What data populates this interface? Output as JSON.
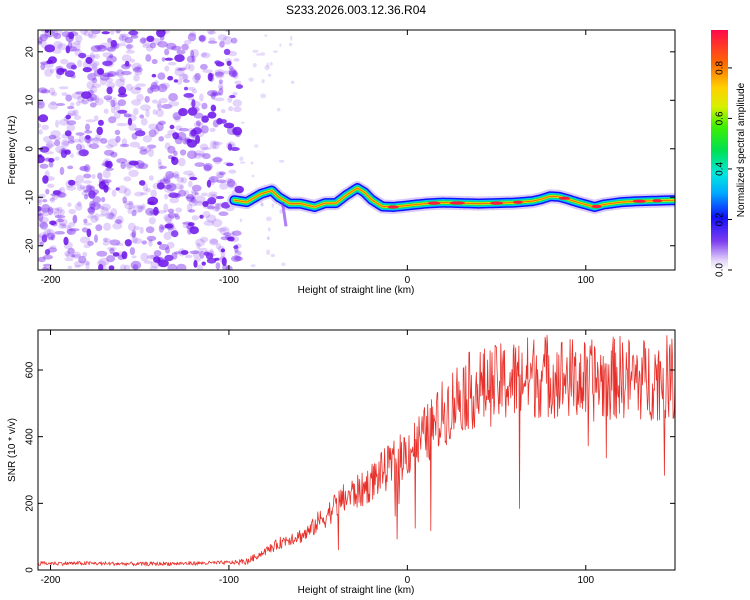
{
  "title": "S233.2026.003.12.36.R04",
  "chart_data": [
    {
      "type": "heatmap",
      "name": "spectrogram",
      "xlabel": "Height of straight line (km)",
      "ylabel": "Frequency (Hz)",
      "xlim": [
        -207,
        150
      ],
      "ylim": [
        -25,
        24.5
      ],
      "x_ticks": [
        -200,
        -100,
        0,
        100
      ],
      "y_ticks": [
        -20,
        -10,
        0,
        10,
        20
      ],
      "noise_region": {
        "x_range": [
          -207,
          -94
        ],
        "color": "#7a2af0",
        "description": "scattered low-amplitude noise"
      },
      "ridge": {
        "x": [
          -97,
          -90,
          -82,
          -76,
          -72,
          -66,
          -60,
          -52,
          -46,
          -40,
          -34,
          -28,
          -24,
          -20,
          -14,
          -8,
          0,
          10,
          20,
          30,
          40,
          50,
          60,
          70,
          75,
          80,
          85,
          90,
          95,
          100,
          105,
          110,
          120,
          130,
          140,
          150
        ],
        "y": [
          -10.6,
          -11,
          -9.3,
          -8.6,
          -10,
          -11.3,
          -11.3,
          -12,
          -11.2,
          -11.2,
          -9.5,
          -8.1,
          -9,
          -10.5,
          -11.9,
          -12,
          -11.7,
          -11.3,
          -11.1,
          -11.2,
          -11.3,
          -11.2,
          -11.1,
          -10.8,
          -10.4,
          -9.8,
          -9.9,
          -10.4,
          -11,
          -11.5,
          -12,
          -11.5,
          -11,
          -10.8,
          -10.7,
          -10.6
        ]
      },
      "colorbar": {
        "label": "Normalized spectral amplitude",
        "range": [
          0.0,
          0.95
        ],
        "ticks": [
          "0.0",
          "0.2",
          "0.4",
          "0.6",
          "0.8"
        ],
        "tick_values": [
          0.0,
          0.2,
          0.4,
          0.6,
          0.8
        ]
      }
    },
    {
      "type": "line",
      "name": "snr",
      "xlabel": "Height of straight line (km)",
      "ylabel": "SNR (10 * v/v)",
      "xlim": [
        -207,
        150
      ],
      "ylim": [
        0,
        720
      ],
      "x_ticks": [
        -200,
        -100,
        0,
        100
      ],
      "y_ticks": [
        0,
        200,
        400,
        600
      ],
      "color": "#e8302a",
      "series": [
        {
          "name": "SNR",
          "x": [
            -207,
            -180,
            -150,
            -120,
            -100,
            -90,
            -85,
            -80,
            -75,
            -70,
            -66,
            -62,
            -58,
            -54,
            -50,
            -45,
            -40,
            -35,
            -30,
            -25,
            -20,
            -15,
            -10,
            -5,
            0,
            5,
            10,
            15,
            20,
            25,
            30,
            40,
            50,
            60,
            70,
            80,
            90,
            100,
            110,
            120,
            130,
            140,
            150
          ],
          "values": [
            20,
            20,
            18,
            20,
            22,
            25,
            40,
            55,
            70,
            85,
            95,
            100,
            105,
            120,
            145,
            165,
            195,
            215,
            230,
            240,
            265,
            290,
            310,
            330,
            355,
            380,
            405,
            430,
            470,
            500,
            530,
            545,
            555,
            570,
            580,
            585,
            575,
            565,
            570,
            580,
            570,
            575,
            580
          ]
        }
      ]
    }
  ]
}
